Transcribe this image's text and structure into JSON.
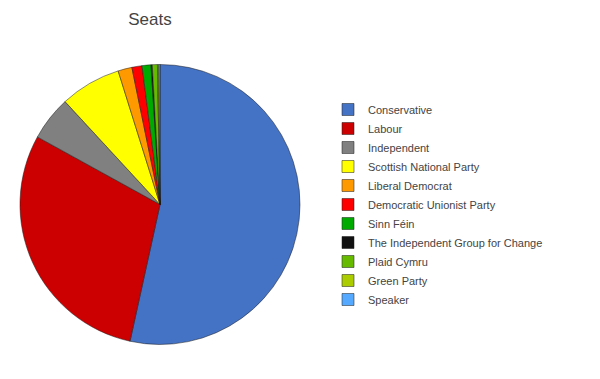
{
  "chart_data": {
    "type": "pie",
    "title": "Seats",
    "categories": [
      "Conservative",
      "Labour",
      "Independent",
      "Scottish National Party",
      "Liberal Democrat",
      "Democratic Unionist Party",
      "Sinn Féin",
      "The Independent Group for Change",
      "Plaid Cymru",
      "Green Party",
      "Speaker"
    ],
    "values": [
      365,
      202,
      35,
      48,
      11,
      8,
      7,
      1,
      4,
      1,
      1
    ],
    "colors": [
      "#4472C4",
      "#CC0000",
      "#808080",
      "#FFFF00",
      "#FF9900",
      "#FF0000",
      "#00AA00",
      "#111111",
      "#66BB00",
      "#AACC00",
      "#55AAFF"
    ],
    "legend": "right",
    "data_labels": false
  }
}
